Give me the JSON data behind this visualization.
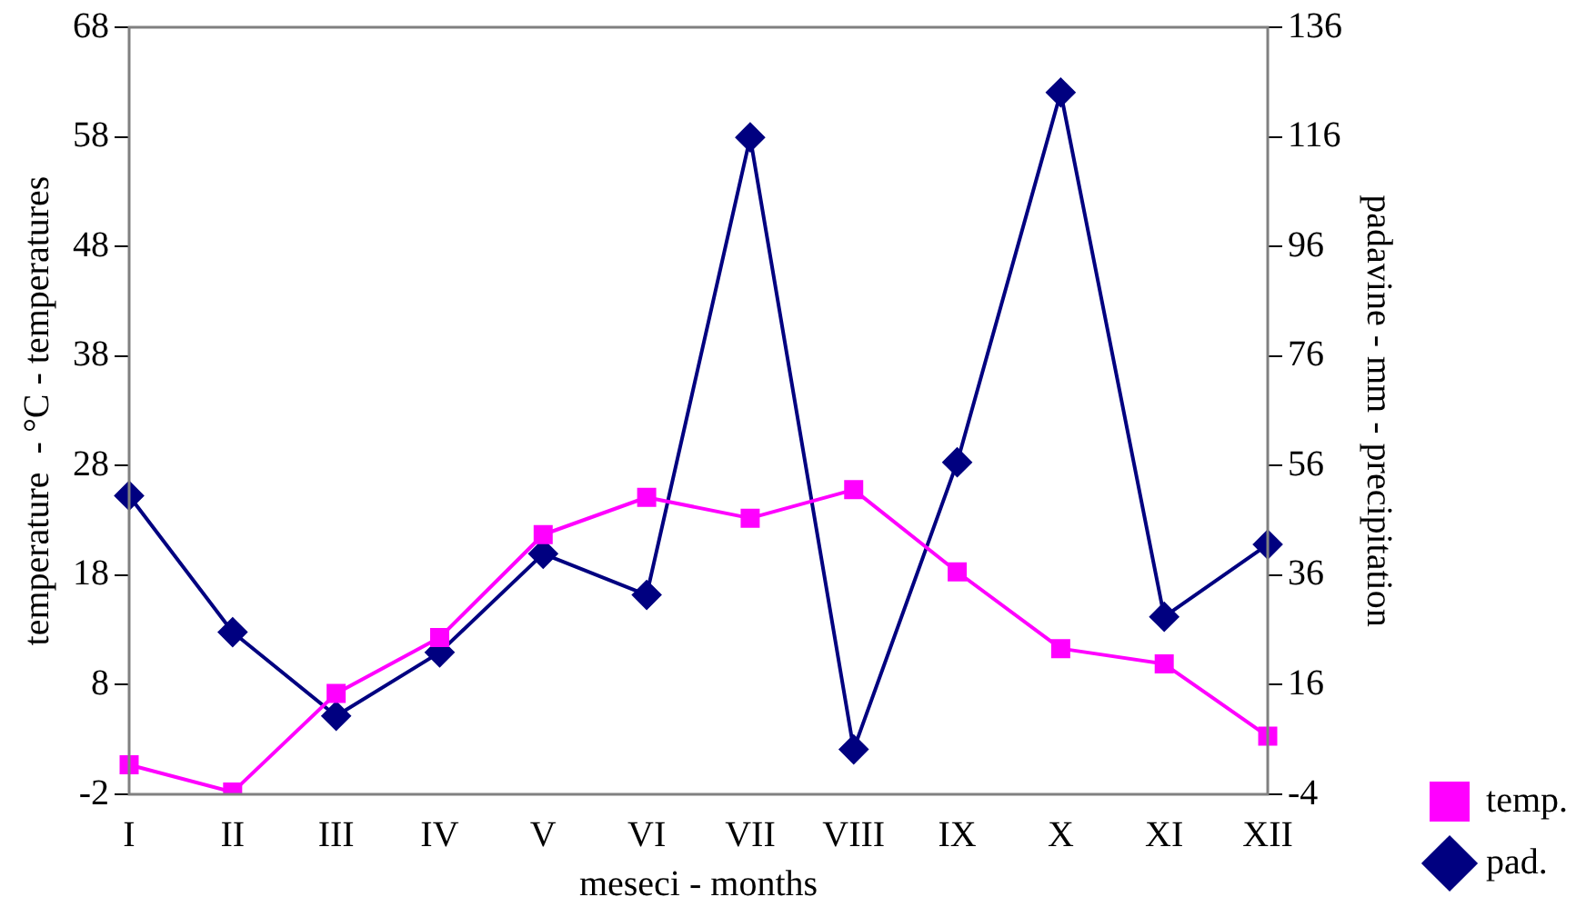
{
  "chart_data": {
    "type": "line",
    "xlabel": "meseci - months",
    "ylabel": "temperature  - °C - temperatures",
    "y2label": "padavine - mm - precipitation",
    "categories": [
      "I",
      "II",
      "III",
      "IV",
      "V",
      "VI",
      "VII",
      "VIII",
      "IX",
      "X",
      "XI",
      "XII"
    ],
    "series": [
      {
        "name": "temp.",
        "color": "#ff00ff",
        "marker": "square",
        "values": [
          0.7,
          -1.8,
          7.2,
          12.3,
          21.7,
          25.1,
          23.2,
          25.8,
          18.3,
          11.3,
          9.9,
          3.3
        ]
      },
      {
        "name": "pad.",
        "color": "#000080",
        "marker": "diamond",
        "axis": "y2",
        "values": [
          50.5,
          25.6,
          10.3,
          21.9,
          39.9,
          32.4,
          115.9,
          4.2,
          56.6,
          124.1,
          28.4,
          41.6
        ]
      }
    ],
    "ylim": [
      -2,
      68
    ],
    "yticks": [
      -2,
      8,
      18,
      28,
      38,
      48,
      58,
      68
    ],
    "y2lim": [
      -4,
      136
    ],
    "y2ticks": [
      -4,
      16,
      36,
      56,
      76,
      96,
      116,
      136
    ],
    "grid": false,
    "legend": "bottom right",
    "line_style": "solid"
  }
}
